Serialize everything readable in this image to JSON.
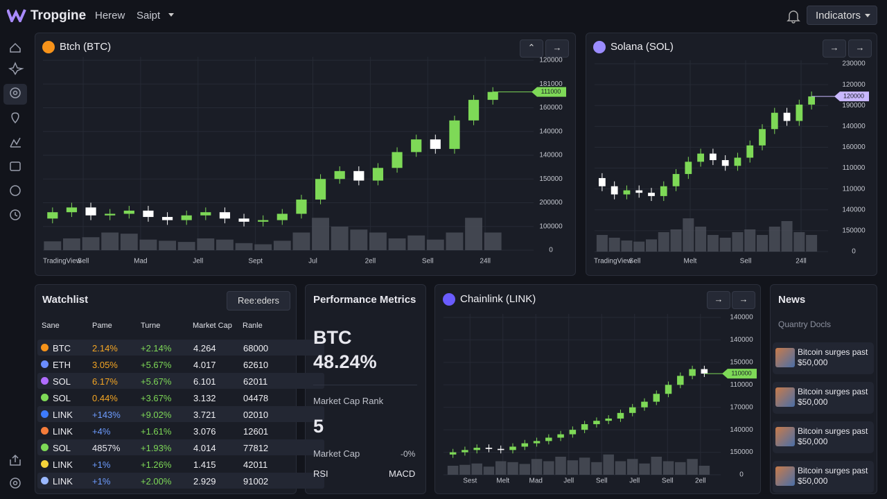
{
  "header": {
    "brand": "Tropgine",
    "nav": [
      "Herew",
      "Saipt"
    ],
    "button": "Indicators"
  },
  "chart_data": [
    {
      "type": "candlestick",
      "title": "Btch (BTC)",
      "source": "TradingView",
      "icon_color": "#f7931a",
      "ylim": [
        0,
        120000
      ],
      "ylabels": [
        "120000",
        "181000",
        "160000",
        "140000",
        "140000",
        "150000",
        "200000",
        "100000",
        "0"
      ],
      "x_labels": [
        "Sell",
        "Mad",
        "Jell",
        "Sept",
        "Jul",
        "2ell",
        "Sell",
        "24ll"
      ],
      "price_tag": "111000",
      "price_tag_color": "#7ed957",
      "up_color": "#7ed957",
      "down_color": "#ffffff",
      "volume_lim": [
        0,
        100
      ],
      "open": [
        20000,
        24000,
        27000,
        22000,
        23000,
        25000,
        21000,
        19000,
        22000,
        24000,
        20000,
        18000,
        19000,
        23000,
        32000,
        45000,
        50000,
        44000,
        52000,
        62000,
        70000,
        64000,
        82000,
        95000
      ],
      "close": [
        24000,
        27000,
        22000,
        23000,
        25000,
        21000,
        19000,
        22000,
        24000,
        20000,
        18000,
        19000,
        23000,
        32000,
        45000,
        50000,
        44000,
        52000,
        62000,
        70000,
        64000,
        82000,
        95000,
        100000
      ],
      "high": [
        27000,
        30000,
        30000,
        26000,
        28000,
        28000,
        24000,
        25000,
        27000,
        27000,
        23000,
        22000,
        26000,
        35000,
        48000,
        53000,
        53000,
        55000,
        65000,
        73000,
        73000,
        85000,
        98000,
        103000
      ],
      "low": [
        17000,
        21000,
        19000,
        19000,
        20000,
        18000,
        16000,
        16000,
        19000,
        17000,
        15000,
        15000,
        16000,
        20000,
        29000,
        42000,
        41000,
        41000,
        49000,
        59000,
        61000,
        61000,
        79000,
        92000
      ],
      "volume": [
        15,
        20,
        22,
        30,
        28,
        18,
        16,
        14,
        20,
        18,
        12,
        10,
        16,
        30,
        55,
        40,
        35,
        30,
        20,
        25,
        18,
        30,
        55,
        30
      ]
    },
    {
      "type": "candlestick",
      "title": "Solana (SOL)",
      "source": "TradingView",
      "icon_color": "#9b8cff",
      "ylim": [
        0,
        230000
      ],
      "ylabels": [
        "230000",
        "120000",
        "190000",
        "140000",
        "160000",
        "110000",
        "110000",
        "140000",
        "150000",
        "0"
      ],
      "x_labels": [
        "Sell",
        "Melt",
        "Sell",
        "24ll"
      ],
      "price_tag": "120000",
      "price_tag_color": "#c9b8ff",
      "up_color": "#7ed957",
      "down_color": "#ffffff",
      "volume_lim": [
        0,
        100
      ],
      "open": [
        90000,
        80000,
        70000,
        75000,
        72000,
        68000,
        80000,
        95000,
        110000,
        120000,
        112000,
        105000,
        115000,
        130000,
        150000,
        170000,
        160000,
        180000
      ],
      "close": [
        80000,
        70000,
        75000,
        72000,
        68000,
        80000,
        95000,
        110000,
        120000,
        112000,
        105000,
        115000,
        130000,
        150000,
        170000,
        160000,
        180000,
        190000
      ],
      "high": [
        96000,
        86000,
        81000,
        81000,
        78000,
        86000,
        101000,
        116000,
        126000,
        126000,
        118000,
        121000,
        136000,
        156000,
        176000,
        176000,
        186000,
        196000
      ],
      "low": [
        74000,
        64000,
        64000,
        66000,
        62000,
        62000,
        74000,
        89000,
        104000,
        106000,
        99000,
        99000,
        109000,
        124000,
        144000,
        154000,
        154000,
        174000
      ],
      "volume": [
        30,
        25,
        20,
        18,
        22,
        35,
        40,
        60,
        45,
        30,
        25,
        35,
        40,
        30,
        45,
        55,
        35,
        30
      ]
    },
    {
      "type": "candlestick",
      "title": "Chainlink (LINK)",
      "icon_color": "#6a5cff",
      "ylim": [
        0,
        140000
      ],
      "ylabels": [
        "140000",
        "140000",
        "150000",
        "110000",
        "170000",
        "140000",
        "150000",
        "0"
      ],
      "x_labels": [
        "Sest",
        "Melt",
        "Mad",
        "Jell",
        "Sell",
        "Jell",
        "Sell",
        "2ell"
      ],
      "price_tag": "110000",
      "price_tag_color": "#7ed957",
      "up_color": "#7ed957",
      "down_color": "#ffffff",
      "volume_lim": [
        0,
        100
      ],
      "open": [
        18000,
        20000,
        22000,
        24000,
        23000,
        22000,
        25000,
        28000,
        30000,
        33000,
        36000,
        40000,
        45000,
        48000,
        50000,
        55000,
        60000,
        65000,
        72000,
        80000,
        88000,
        94000
      ],
      "close": [
        20000,
        22000,
        24000,
        23000,
        22000,
        25000,
        28000,
        30000,
        33000,
        36000,
        40000,
        45000,
        48000,
        50000,
        55000,
        60000,
        65000,
        72000,
        80000,
        88000,
        94000,
        90000
      ],
      "high": [
        23000,
        25000,
        27000,
        27000,
        26000,
        28000,
        31000,
        33000,
        36000,
        39000,
        43000,
        48000,
        51000,
        53000,
        58000,
        63000,
        68000,
        75000,
        83000,
        91000,
        97000,
        97000
      ],
      "low": [
        15000,
        17000,
        19000,
        20000,
        19000,
        19000,
        22000,
        25000,
        27000,
        30000,
        33000,
        37000,
        42000,
        45000,
        47000,
        52000,
        57000,
        62000,
        69000,
        77000,
        85000,
        87000
      ],
      "volume": [
        20,
        22,
        25,
        18,
        30,
        28,
        24,
        35,
        30,
        40,
        32,
        38,
        28,
        45,
        30,
        35,
        25,
        40,
        30,
        28,
        35,
        20
      ]
    }
  ],
  "watchlist": {
    "title": "Watchlist",
    "button": "Ree:eders",
    "columns": [
      "Sane",
      "Pame",
      "Turne",
      "Market Cap",
      "Ranle"
    ],
    "rows": [
      {
        "symbol": "BTC",
        "icon_color": "#f7931a",
        "change": "2.14%",
        "change_color": "#f5a623",
        "turnover": "+2.14%",
        "cap": "4.264",
        "rank": "68000"
      },
      {
        "symbol": "ETH",
        "icon_color": "#6a8cff",
        "change": "3.05%",
        "change_color": "#f5a623",
        "turnover": "+5.67%",
        "cap": "4.017",
        "rank": "62610"
      },
      {
        "symbol": "SOL",
        "icon_color": "#b06cff",
        "change": "6.17%",
        "change_color": "#f5a623",
        "turnover": "+5.67%",
        "cap": "6.101",
        "rank": "62011"
      },
      {
        "symbol": "SOL",
        "icon_color": "#7ed957",
        "change": "0.44%",
        "change_color": "#f5a623",
        "turnover": "+3.67%",
        "cap": "3.132",
        "rank": "04478"
      },
      {
        "symbol": "LINK",
        "icon_color": "#3d7bff",
        "change": "+143%",
        "change_color": "#6d9cff",
        "turnover": "+9.02%",
        "cap": "3.721",
        "rank": "02010"
      },
      {
        "symbol": "LINK",
        "icon_color": "#f57c3a",
        "change": "+4%",
        "change_color": "#6d9cff",
        "turnover": "+1.61%",
        "cap": "3.076",
        "rank": "12601"
      },
      {
        "symbol": "SOL",
        "icon_color": "#7ed957",
        "change": "4857%",
        "change_color": "#e8e8ee",
        "turnover": "+1.93%",
        "cap": "4.014",
        "rank": "77812"
      },
      {
        "symbol": "LINK",
        "icon_color": "#f5d33a",
        "change": "+1%",
        "change_color": "#6d9cff",
        "turnover": "+1.26%",
        "cap": "1.415",
        "rank": "42011"
      },
      {
        "symbol": "LINK",
        "icon_color": "#9ab8ff",
        "change": "+1%",
        "change_color": "#6d9cff",
        "turnover": "+2.00%",
        "cap": "2.929",
        "rank": "91002"
      }
    ]
  },
  "metrics": {
    "title": "Performance Metrics",
    "asset": "BTC",
    "share": "48.24%",
    "rank_label": "Market Cap Rank",
    "rank": "5",
    "cap_label": "Market Cap",
    "cap_value": "-0%",
    "rsi": "RSI",
    "macd": "MACD"
  },
  "news": {
    "title": "News",
    "subtitle": "Quantry Docls",
    "items": [
      {
        "headline": "Bitcoin surges past",
        "amount": "$50,000"
      },
      {
        "headline": "Bitcoin surges past",
        "amount": "$50,000"
      },
      {
        "headline": "Bitcoin surges past",
        "amount": "$50,000"
      },
      {
        "headline": "Bitcoin surges past",
        "amount": "$50,000"
      }
    ]
  }
}
